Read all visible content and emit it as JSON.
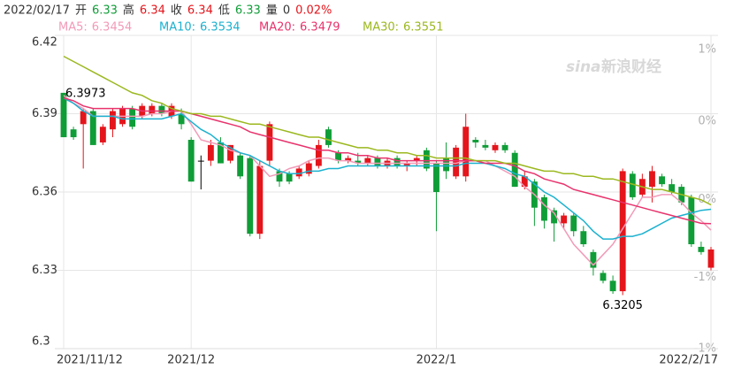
{
  "chart_data": {
    "type": "candlestick",
    "header": {
      "date": "2022/02/17",
      "items": [
        {
          "label": "开",
          "value": 6.33,
          "color": "#0f9d37"
        },
        {
          "label": "高",
          "value": 6.34,
          "color": "#e4151b"
        },
        {
          "label": "收",
          "value": 6.34,
          "color": "#e4151b"
        },
        {
          "label": "低",
          "value": 6.33,
          "color": "#0f9d37"
        },
        {
          "label": "量",
          "value": 0,
          "color": "#333333"
        }
      ],
      "change": "0.02%",
      "change_color": "#e4151b"
    },
    "watermark": [
      "sina",
      "新浪财经"
    ],
    "categories": [
      "2021/11/12",
      null,
      null,
      null,
      null,
      null,
      null,
      null,
      null,
      null,
      null,
      null,
      null,
      "2021/12",
      null,
      null,
      null,
      null,
      null,
      null,
      null,
      null,
      null,
      null,
      null,
      null,
      null,
      null,
      null,
      null,
      null,
      null,
      null,
      null,
      null,
      null,
      null,
      null,
      "2022/1",
      null,
      null,
      null,
      null,
      null,
      null,
      null,
      null,
      null,
      null,
      null,
      null,
      null,
      null,
      null,
      null,
      null,
      null,
      null,
      null,
      null,
      null,
      null,
      null,
      null,
      null,
      null,
      "2022/2/17"
    ],
    "open": [
      6.398,
      6.384,
      6.386,
      6.391,
      6.379,
      6.384,
      6.386,
      6.392,
      6.389,
      6.39,
      6.393,
      6.389,
      6.39,
      6.38,
      6.372,
      6.372,
      6.379,
      6.372,
      6.374,
      6.373,
      6.344,
      6.372,
      6.368,
      6.367,
      6.366,
      6.367,
      6.37,
      6.384,
      6.375,
      6.372,
      6.372,
      6.371,
      6.373,
      6.37,
      6.373,
      6.37,
      6.372,
      6.376,
      6.371,
      6.373,
      6.366,
      6.366,
      6.38,
      6.378,
      6.376,
      6.378,
      6.375,
      6.362,
      6.364,
      6.358,
      6.353,
      6.348,
      6.351,
      6.345,
      6.337,
      6.329,
      6.326,
      6.322,
      6.367,
      6.359,
      6.362,
      6.366,
      6.363,
      6.362,
      6.358,
      6.339,
      6.331
    ],
    "high": [
      6.3973,
      6.385,
      6.392,
      6.392,
      6.386,
      6.392,
      6.393,
      6.393,
      6.394,
      6.394,
      6.394,
      6.394,
      6.392,
      6.381,
      6.374,
      6.38,
      6.381,
      6.378,
      6.375,
      6.374,
      6.372,
      6.387,
      6.369,
      6.368,
      6.37,
      6.372,
      6.38,
      6.385,
      6.376,
      6.374,
      6.375,
      6.374,
      6.374,
      6.373,
      6.374,
      6.372,
      6.374,
      6.377,
      6.372,
      6.379,
      6.378,
      6.39,
      6.381,
      6.38,
      6.379,
      6.379,
      6.376,
      6.368,
      6.365,
      6.359,
      6.354,
      6.352,
      6.352,
      6.347,
      6.338,
      6.33,
      6.328,
      6.369,
      6.368,
      6.367,
      6.37,
      6.367,
      6.365,
      6.363,
      6.359,
      6.341,
      6.339
    ],
    "low": [
      6.381,
      6.38,
      6.369,
      6.378,
      6.378,
      6.381,
      6.385,
      6.384,
      6.388,
      6.389,
      6.389,
      6.388,
      6.384,
      6.364,
      6.361,
      6.37,
      6.371,
      6.371,
      6.365,
      6.343,
      6.342,
      6.37,
      6.362,
      6.363,
      6.365,
      6.366,
      6.369,
      6.377,
      6.371,
      6.371,
      6.37,
      6.37,
      6.369,
      6.369,
      6.369,
      6.368,
      6.37,
      6.368,
      6.345,
      6.365,
      6.365,
      6.364,
      6.377,
      6.376,
      6.375,
      6.375,
      6.362,
      6.361,
      6.347,
      6.346,
      6.341,
      6.346,
      6.343,
      6.339,
      6.328,
      6.325,
      6.321,
      6.3205,
      6.357,
      6.358,
      6.356,
      6.362,
      6.359,
      6.355,
      6.339,
      6.336,
      6.33
    ],
    "close": [
      6.381,
      6.381,
      6.391,
      6.378,
      6.385,
      6.391,
      6.392,
      6.385,
      6.393,
      6.393,
      6.39,
      6.393,
      6.386,
      6.364,
      6.372,
      6.378,
      6.371,
      6.378,
      6.366,
      6.344,
      6.37,
      6.386,
      6.364,
      6.364,
      6.369,
      6.371,
      6.378,
      6.378,
      6.372,
      6.373,
      6.371,
      6.373,
      6.37,
      6.372,
      6.37,
      6.371,
      6.373,
      6.369,
      6.36,
      6.368,
      6.377,
      6.385,
      6.379,
      6.377,
      6.378,
      6.376,
      6.362,
      6.366,
      6.354,
      6.349,
      6.348,
      6.351,
      6.345,
      6.34,
      6.331,
      6.326,
      6.322,
      6.368,
      6.358,
      6.365,
      6.368,
      6.363,
      6.36,
      6.356,
      6.34,
      6.337,
      6.338
    ],
    "up_color": "#e4151b",
    "down_color": "#0f9d37",
    "flat_color": "#000000",
    "high_label_index": 0,
    "low_label_index": 57,
    "series": [
      {
        "name": "MA5:",
        "color": "#f29ab8",
        "values": [
          6.397,
          6.394,
          6.392,
          6.389,
          6.389,
          6.389,
          6.389,
          6.389,
          6.389,
          6.39,
          6.39,
          6.391,
          6.391,
          6.386,
          6.38,
          6.379,
          6.378,
          6.376,
          6.375,
          6.374,
          6.37,
          6.366,
          6.367,
          6.369,
          6.37,
          6.372,
          6.373,
          6.373,
          6.372,
          6.372,
          6.371,
          6.371,
          6.371,
          6.371,
          6.371,
          6.371,
          6.371,
          6.371,
          6.371,
          6.371,
          6.371,
          6.372,
          6.372,
          6.372,
          6.37,
          6.368,
          6.366,
          6.362,
          6.359,
          6.355,
          6.352,
          6.346,
          6.34,
          6.336,
          6.332,
          6.336,
          6.34,
          6.346,
          6.352,
          6.358,
          6.358,
          6.359,
          6.359,
          6.356,
          6.352,
          6.349,
          6.3454
        ]
      },
      {
        "name": "MA10:",
        "color": "#1bb1cf",
        "values": [
          6.396,
          6.394,
          6.391,
          6.389,
          6.389,
          6.389,
          6.388,
          6.388,
          6.388,
          6.388,
          6.388,
          6.389,
          6.39,
          6.387,
          6.384,
          6.382,
          6.379,
          6.377,
          6.375,
          6.374,
          6.372,
          6.37,
          6.368,
          6.367,
          6.367,
          6.368,
          6.368,
          6.369,
          6.369,
          6.37,
          6.37,
          6.37,
          6.37,
          6.37,
          6.37,
          6.37,
          6.37,
          6.37,
          6.37,
          6.37,
          6.37,
          6.371,
          6.371,
          6.371,
          6.37,
          6.369,
          6.367,
          6.366,
          6.363,
          6.36,
          6.358,
          6.355,
          6.352,
          6.349,
          6.345,
          6.342,
          6.342,
          6.343,
          6.343,
          6.344,
          6.346,
          6.348,
          6.35,
          6.351,
          6.352,
          6.353,
          6.3534
        ]
      },
      {
        "name": "MA20:",
        "color": "#e8336d",
        "values": [
          6.396,
          6.395,
          6.393,
          6.392,
          6.392,
          6.392,
          6.392,
          6.392,
          6.391,
          6.391,
          6.391,
          6.391,
          6.391,
          6.39,
          6.389,
          6.388,
          6.387,
          6.386,
          6.385,
          6.383,
          6.382,
          6.381,
          6.38,
          6.379,
          6.378,
          6.377,
          6.376,
          6.376,
          6.375,
          6.375,
          6.374,
          6.374,
          6.373,
          6.373,
          6.372,
          6.372,
          6.372,
          6.372,
          6.372,
          6.372,
          6.372,
          6.372,
          6.372,
          6.371,
          6.371,
          6.371,
          6.37,
          6.368,
          6.367,
          6.365,
          6.364,
          6.363,
          6.361,
          6.36,
          6.359,
          6.358,
          6.357,
          6.356,
          6.355,
          6.354,
          6.353,
          6.352,
          6.351,
          6.35,
          6.349,
          6.348,
          6.3479
        ]
      },
      {
        "name": "MA30:",
        "color": "#9bb81f",
        "values": [
          6.412,
          6.41,
          6.408,
          6.406,
          6.404,
          6.402,
          6.4,
          6.398,
          6.397,
          6.395,
          6.394,
          6.392,
          6.391,
          6.39,
          6.39,
          6.389,
          6.389,
          6.388,
          6.387,
          6.386,
          6.386,
          6.385,
          6.384,
          6.383,
          6.382,
          6.381,
          6.381,
          6.38,
          6.379,
          6.378,
          6.377,
          6.377,
          6.376,
          6.376,
          6.375,
          6.375,
          6.374,
          6.374,
          6.373,
          6.373,
          6.373,
          6.373,
          6.372,
          6.372,
          6.372,
          6.371,
          6.371,
          6.37,
          6.369,
          6.368,
          6.368,
          6.367,
          6.367,
          6.366,
          6.366,
          6.365,
          6.365,
          6.364,
          6.363,
          6.362,
          6.361,
          6.361,
          6.36,
          6.359,
          6.358,
          6.357,
          6.3551
        ]
      }
    ],
    "ylim": [
      6.3,
      6.42
    ],
    "yticks": [
      6.42,
      6.39,
      6.36,
      6.33,
      6.3
    ],
    "y2lim": [
      -1.1,
      0.785
    ],
    "y2ticks": [
      {
        "value": 0.78,
        "label": "1%"
      },
      {
        "value": 0.31,
        "label": "0%"
      },
      {
        "value": -0.16,
        "label": "0%"
      },
      {
        "value": -0.63,
        "label": "-1%"
      },
      {
        "value": -1.1,
        "label": "-1%"
      }
    ],
    "grid": true
  }
}
